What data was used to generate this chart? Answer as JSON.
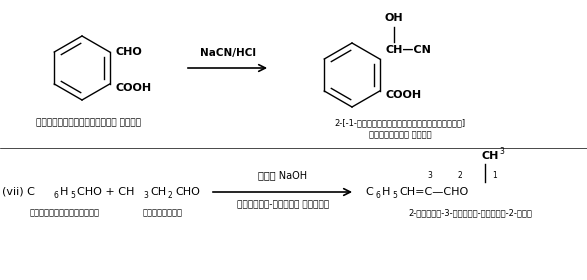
{
  "bg_color": "#ffffff",
  "fig_width": 5.87,
  "fig_height": 2.8,
  "dpi": 100,
  "r1_arrow_label": "NaCN/HCl",
  "r1_reactant_name": "फार्मिलबेन्जोइक अम्ल",
  "r1_product_name1": "2-[-1-हाइड्रोक्सीसायनोमेथिल]",
  "r1_product_name2": "बेन्जोइक अम्ल",
  "r2_arrow_top": "तनु NaOH",
  "r2_arrow_bottom": "क्लेजन-शिम्ट संघनन",
  "r2_reactant_name1": "बेन्जैल्डिहाइड",
  "r2_reactant_name2": "प्रोपेनल",
  "r2_product_name": "2-मेथिल-3-फेनिल-प्रोप-2-ईनल"
}
